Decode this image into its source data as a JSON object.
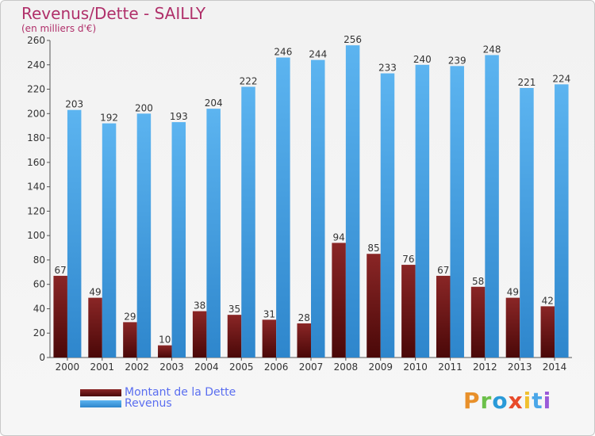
{
  "header": {
    "title": "Revenus/Dette - SAILLY",
    "subtitle": "(en milliers d'€)"
  },
  "legend": {
    "items": [
      {
        "label": "Montant de la Dette",
        "color": "#7a1a1a"
      },
      {
        "label": "Revenus",
        "color": "#4aa6e8"
      }
    ]
  },
  "logo": {
    "text": "Proxiti",
    "colors": [
      "#e8902a",
      "#6cc04a",
      "#2a9ad8",
      "#e84a2a",
      "#f0c030",
      "#4aa6e8",
      "#9a5ad8"
    ]
  },
  "chart_data": {
    "type": "bar",
    "title": "Revenus/Dette - SAILLY",
    "ylabel": "(en milliers d'€)",
    "categories": [
      "2000",
      "2001",
      "2002",
      "2003",
      "2004",
      "2005",
      "2006",
      "2007",
      "2008",
      "2009",
      "2010",
      "2011",
      "2012",
      "2013",
      "2014"
    ],
    "series": [
      {
        "name": "Montant de la Dette",
        "color": "#7a1a1a",
        "values": [
          67,
          49,
          29,
          10,
          38,
          35,
          31,
          28,
          94,
          85,
          76,
          67,
          58,
          49,
          42
        ]
      },
      {
        "name": "Revenus",
        "color": "#4aa6e8",
        "values": [
          203,
          192,
          200,
          193,
          204,
          222,
          246,
          244,
          256,
          233,
          240,
          239,
          248,
          221,
          224
        ]
      }
    ],
    "ylim": [
      0,
      260
    ],
    "yticks": [
      0,
      20,
      40,
      60,
      80,
      100,
      120,
      140,
      160,
      180,
      200,
      220,
      240,
      260
    ],
    "grid": false,
    "legend": "bottom-left"
  }
}
